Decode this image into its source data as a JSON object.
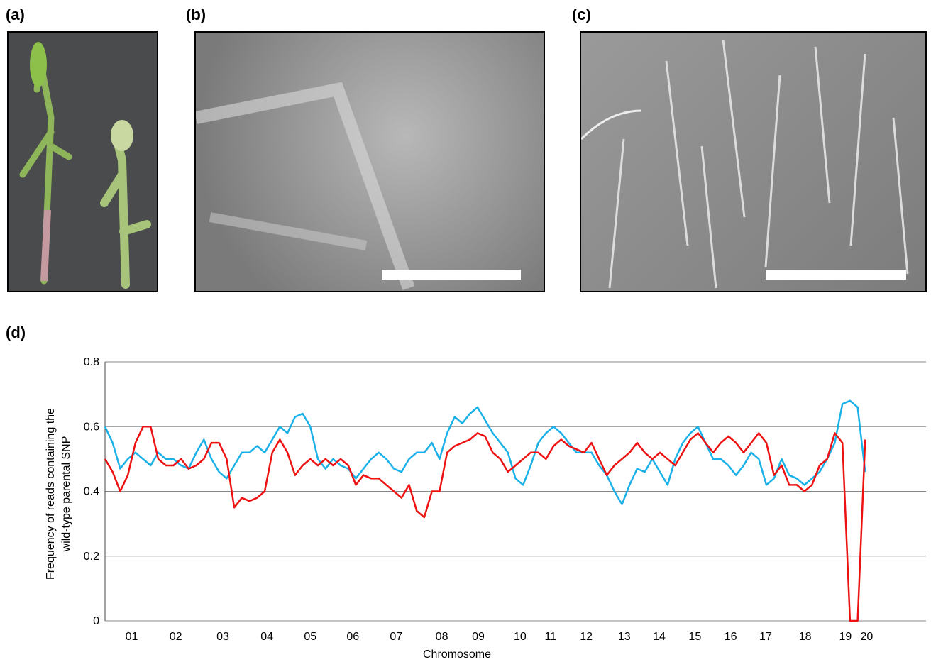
{
  "panel_labels": [
    "(a)",
    "(b)",
    "(c)",
    "(d)"
  ],
  "chart_data": {
    "type": "line",
    "ylabel": [
      "Frequency of reads containing the",
      "wild-type parental SNP"
    ],
    "xlabel": "Chromosome",
    "x": [
      0,
      1,
      2,
      3,
      4,
      5,
      6,
      7,
      8,
      9,
      10,
      11,
      12,
      13,
      14,
      15,
      16,
      17,
      18,
      19,
      20,
      21,
      22,
      23,
      24,
      25,
      26,
      27,
      28,
      29,
      30,
      31,
      32,
      33,
      34,
      35,
      36,
      37,
      38,
      39,
      40,
      41,
      42,
      43,
      44,
      45,
      46,
      47,
      48,
      49,
      50,
      51,
      52,
      53,
      54,
      55,
      56,
      57,
      58,
      59,
      60,
      61,
      62,
      63,
      64,
      65,
      66,
      67,
      68,
      69,
      70,
      71,
      72,
      73,
      74,
      75,
      76,
      77,
      78,
      79,
      80,
      81,
      82,
      83,
      84,
      85,
      86,
      87,
      88,
      89,
      90,
      91,
      92,
      93,
      94,
      95,
      96,
      97,
      98,
      99,
      100
    ],
    "series": [
      {
        "color": "#1ab0e8",
        "values": [
          0.6,
          0.55,
          0.47,
          0.5,
          0.52,
          0.5,
          0.48,
          0.52,
          0.5,
          0.5,
          0.48,
          0.47,
          0.52,
          0.56,
          0.5,
          0.46,
          0.44,
          0.48,
          0.52,
          0.52,
          0.54,
          0.52,
          0.56,
          0.6,
          0.58,
          0.63,
          0.64,
          0.6,
          0.5,
          0.47,
          0.5,
          0.48,
          0.47,
          0.44,
          0.47,
          0.5,
          0.52,
          0.5,
          0.47,
          0.46,
          0.5,
          0.52,
          0.52,
          0.55,
          0.5,
          0.58,
          0.63,
          0.61,
          0.64,
          0.66,
          0.62,
          0.58,
          0.55,
          0.52,
          0.44,
          0.42,
          0.48,
          0.55,
          0.58,
          0.6,
          0.58,
          0.55,
          0.52,
          0.52,
          0.52,
          0.48,
          0.45,
          0.4,
          0.36,
          0.42,
          0.47,
          0.46,
          0.5,
          0.46,
          0.42,
          0.5,
          0.55,
          0.58,
          0.6,
          0.55,
          0.5,
          0.5,
          0.48,
          0.45,
          0.48,
          0.52,
          0.5,
          0.42,
          0.44,
          0.5,
          0.45,
          0.44,
          0.42,
          0.44,
          0.46,
          0.5,
          0.55,
          0.67,
          0.68,
          0.66,
          0.46
        ]
      },
      {
        "color": "#ee1111",
        "values": [
          0.5,
          0.46,
          0.4,
          0.45,
          0.55,
          0.6,
          0.6,
          0.5,
          0.48,
          0.48,
          0.5,
          0.47,
          0.48,
          0.5,
          0.55,
          0.55,
          0.5,
          0.35,
          0.38,
          0.37,
          0.38,
          0.4,
          0.52,
          0.56,
          0.52,
          0.45,
          0.48,
          0.5,
          0.48,
          0.5,
          0.48,
          0.5,
          0.48,
          0.42,
          0.45,
          0.44,
          0.44,
          0.42,
          0.4,
          0.38,
          0.42,
          0.34,
          0.32,
          0.4,
          0.4,
          0.52,
          0.54,
          0.55,
          0.56,
          0.58,
          0.57,
          0.52,
          0.5,
          0.46,
          0.48,
          0.5,
          0.52,
          0.52,
          0.5,
          0.54,
          0.56,
          0.54,
          0.53,
          0.52,
          0.55,
          0.5,
          0.45,
          0.48,
          0.5,
          0.52,
          0.55,
          0.52,
          0.5,
          0.52,
          0.5,
          0.48,
          0.52,
          0.56,
          0.58,
          0.55,
          0.52,
          0.55,
          0.57,
          0.55,
          0.52,
          0.55,
          0.58,
          0.55,
          0.45,
          0.48,
          0.42,
          0.42,
          0.4,
          0.42,
          0.48,
          0.5,
          0.58,
          0.55,
          0.0,
          0.0,
          0.56
        ]
      }
    ],
    "xlim": [
      0,
      108
    ],
    "xticks": [
      {
        "value": 3.5,
        "label": "01"
      },
      {
        "value": 9.3,
        "label": "02"
      },
      {
        "value": 15.5,
        "label": "03"
      },
      {
        "value": 21.3,
        "label": "04"
      },
      {
        "value": 27.0,
        "label": "05"
      },
      {
        "value": 32.6,
        "label": "06"
      },
      {
        "value": 38.3,
        "label": "07"
      },
      {
        "value": 44.3,
        "label": "08"
      },
      {
        "value": 49.1,
        "label": "09"
      },
      {
        "value": 54.6,
        "label": "10"
      },
      {
        "value": 58.6,
        "label": "11"
      },
      {
        "value": 63.3,
        "label": "12"
      },
      {
        "value": 68.3,
        "label": "13"
      },
      {
        "value": 72.9,
        "label": "14"
      },
      {
        "value": 77.6,
        "label": "15"
      },
      {
        "value": 82.3,
        "label": "16"
      },
      {
        "value": 86.9,
        "label": "17"
      },
      {
        "value": 92.1,
        "label": "18"
      },
      {
        "value": 97.4,
        "label": "19"
      },
      {
        "value": 100.2,
        "label": "20"
      }
    ],
    "ylim": [
      0,
      0.8
    ],
    "yticks": [
      0,
      0.2,
      0.4,
      0.6,
      0.8
    ],
    "grid": true
  }
}
